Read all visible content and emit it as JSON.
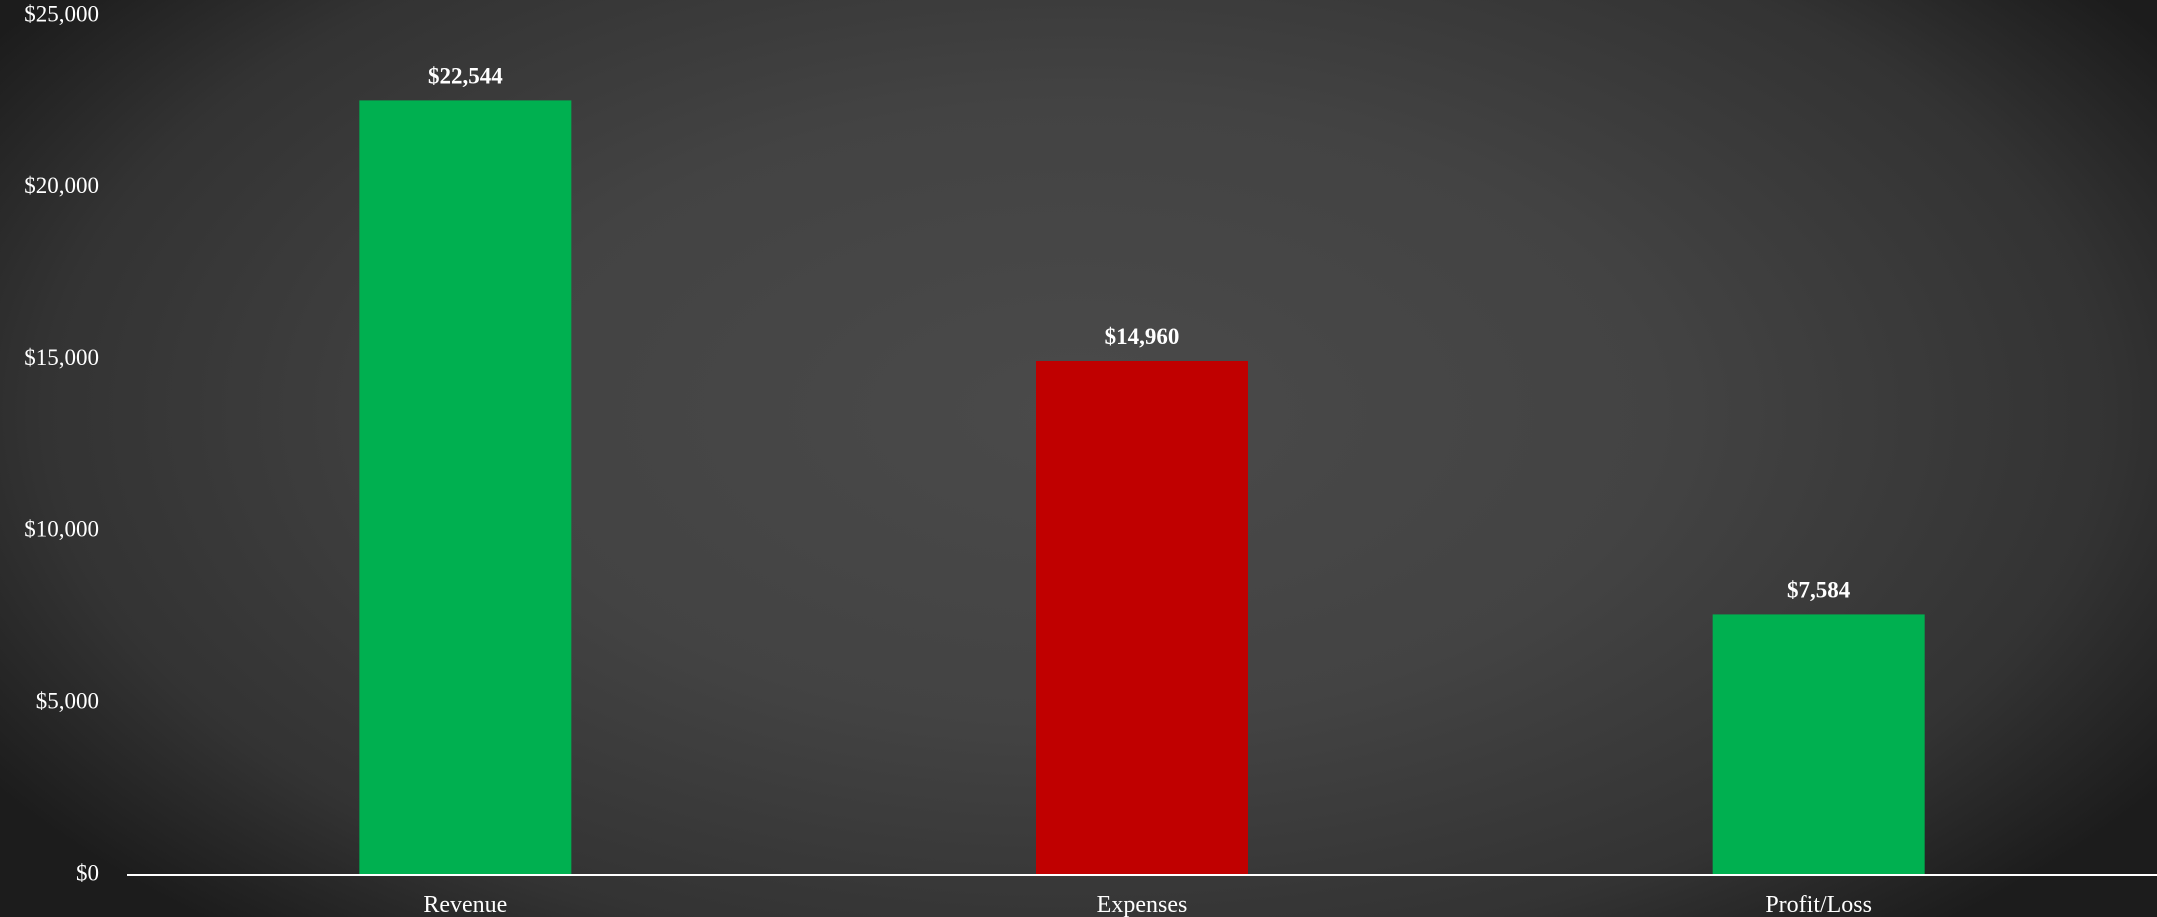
{
  "chart_data": {
    "type": "bar",
    "title": "",
    "xlabel": "",
    "ylabel": "",
    "categories": [
      "Revenue",
      "Expenses",
      "Profit/Loss"
    ],
    "values": [
      22544,
      14960,
      7584
    ],
    "data_labels": [
      "$22,544",
      "$14,960",
      "$7,584"
    ],
    "bar_colors": [
      "#00b050",
      "#c00000",
      "#00b050"
    ],
    "ylim": [
      0,
      25000
    ],
    "y_ticks": [
      0,
      5000,
      10000,
      15000,
      20000,
      25000
    ],
    "y_tick_labels": [
      "$0",
      "$5,000",
      "$10,000",
      "$15,000",
      "$20,000",
      "$25,000"
    ],
    "grid": false,
    "legend": "none",
    "colors": {
      "axis_line": "#ffffff",
      "text": "#ffffff"
    }
  }
}
